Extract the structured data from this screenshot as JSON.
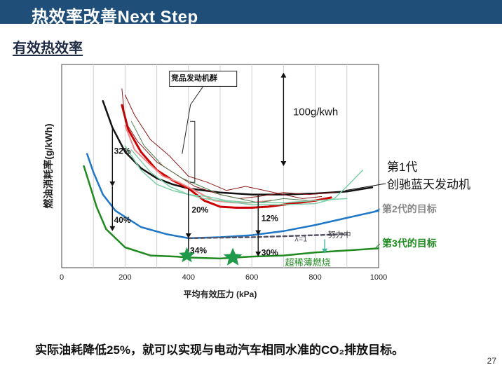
{
  "header": {
    "title": "热效率改善Next Step"
  },
  "subtitle": "有效热效率",
  "footer": {
    "conclusion": "实际油耗降低25%，就可以实现与电动汽车相同水准的CO₂排放目标。",
    "page_number": "27"
  },
  "colors": {
    "header_bg": "#1f4e79",
    "gen1": "#111111",
    "gen2": "#1f77c8",
    "gen3": "#1f8a1f",
    "competitor_red": "#d01010",
    "competitor_pink": "#ef8a8a",
    "competitor_dark": "#8b1a1a",
    "competitor_green": "#7fcfa9",
    "competitor_olive": "#4f7f4f"
  },
  "chart_data": {
    "type": "line",
    "xlabel": "平均有效压力 (kPa)",
    "ylabel": "燃油消耗率(g/kWh)",
    "x_ticks": [
      "0",
      "200",
      "400",
      "600",
      "800",
      "1000"
    ],
    "xlim": [
      0,
      1000
    ],
    "ylim": [
      0,
      100
    ],
    "grid": true,
    "series": [
      {
        "name": "第1代 创驰蓝天发动机",
        "color": "#111111",
        "x": [
          130,
          160,
          200,
          250,
          300,
          350,
          400,
          500,
          600,
          700,
          800,
          900,
          980
        ],
        "y": [
          82,
          69,
          57,
          49,
          44,
          41,
          39,
          37,
          36,
          36,
          36.5,
          37.5,
          39.5
        ]
      },
      {
        "name": "第2代的目标",
        "color": "#1f77c8",
        "x": [
          80,
          100,
          130,
          170,
          250,
          330,
          400,
          500,
          600,
          700,
          800,
          900,
          1000
        ],
        "y": [
          56,
          47,
          36,
          28,
          20,
          16.5,
          14.5,
          15,
          16,
          18,
          21,
          24.5,
          28
        ]
      },
      {
        "name": "第3代的目标",
        "color": "#1f8a1f",
        "x": [
          70,
          90,
          110,
          140,
          200,
          280,
          360,
          400,
          500,
          600,
          700,
          800,
          900,
          1000
        ],
        "y": [
          50,
          40,
          30,
          19,
          10,
          6,
          5.5,
          5,
          4.5,
          5.5,
          6,
          7.5,
          8.5,
          9.5
        ]
      },
      {
        "name": "λ=1",
        "color": "#555566",
        "dashed": true,
        "x": [
          400,
          500,
          600,
          700,
          800,
          900
        ],
        "y": [
          14.5,
          14.8,
          15,
          15.5,
          16,
          16.5
        ]
      },
      {
        "name": "",
        "color": "#cc0000",
        "width": 3,
        "x": [
          190,
          210,
          250,
          300,
          350,
          400,
          450,
          500,
          550,
          600,
          650,
          700,
          800,
          850
        ],
        "y": [
          80,
          68,
          57,
          48,
          43,
          39,
          33,
          30,
          29.5,
          29.5,
          30,
          31,
          33,
          34.5
        ]
      },
      {
        "name": "",
        "color": "#ef8a8a",
        "width": 2,
        "x": [
          200,
          230,
          270,
          320,
          370,
          420,
          480,
          540,
          600,
          660
        ],
        "y": [
          70,
          58,
          52,
          45,
          42,
          38,
          33,
          32,
          32,
          33
        ]
      },
      {
        "name": "",
        "color": "#8b1a1a",
        "width": 1,
        "x": [
          190,
          200,
          240,
          300,
          360,
          420,
          500,
          560,
          620,
          700,
          780,
          860
        ],
        "y": [
          88,
          72,
          62,
          52,
          46,
          40,
          36,
          34,
          35,
          37,
          36,
          37
        ]
      },
      {
        "name": "",
        "color": "#8b1a1a",
        "width": 1,
        "x": [
          200,
          230,
          280,
          340,
          400,
          460,
          520,
          580,
          640,
          700,
          760,
          820
        ],
        "y": [
          85,
          75,
          63,
          55,
          45,
          42,
          38,
          40,
          38,
          36,
          34,
          35
        ]
      },
      {
        "name": "",
        "color": "#4f7f4f",
        "width": 1,
        "x": [
          220,
          260,
          320,
          380,
          440,
          500,
          560,
          620,
          700,
          780
        ],
        "y": [
          72,
          60,
          50,
          44,
          40,
          36,
          34,
          32,
          34,
          33
        ]
      },
      {
        "name": "",
        "color": "#7fcfa9",
        "width": 1.5,
        "x": [
          200,
          250,
          300,
          350,
          400,
          450,
          500,
          550,
          600,
          700,
          800,
          860,
          900,
          950
        ],
        "y": [
          60,
          48,
          41,
          38,
          36,
          34,
          33,
          32,
          31,
          31,
          31.5,
          34,
          40,
          48
        ]
      },
      {
        "name": "",
        "color": "#7fcfa9",
        "width": 1.5,
        "x": [
          220,
          280,
          340,
          400,
          460,
          520,
          600,
          700,
          800,
          900
        ],
        "y": [
          58,
          47,
          40,
          36,
          35,
          33,
          32,
          32,
          33,
          34
        ]
      }
    ],
    "annotations": [
      {
        "text": "32%",
        "x": 165,
        "y": 56,
        "color": "#111111"
      },
      {
        "text": "40%",
        "x": 165,
        "y": 22,
        "color": "#111111"
      },
      {
        "text": "20%",
        "x": 410,
        "y": 27,
        "color": "#111111"
      },
      {
        "text": "34%",
        "x": 405,
        "y": 7,
        "color": "#111111"
      },
      {
        "text": "12%",
        "x": 630,
        "y": 23,
        "color": "#111111"
      },
      {
        "text": "30%",
        "x": 630,
        "y": 6,
        "color": "#111111"
      },
      {
        "text": "λ=1",
        "x": 735,
        "y": 13,
        "color": "#555566"
      },
      {
        "text": "努力中",
        "x": 840,
        "y": 15,
        "color": "#333333"
      },
      {
        "text": "超稀薄燃烧",
        "x": 705,
        "y": 1,
        "color": "#1f8a1f"
      },
      {
        "text": "100g/kwh",
        "x": 730,
        "y": 75,
        "color": "#111111"
      },
      {
        "text": "竞品发动机群",
        "x": 345,
        "y": 92,
        "color": "#111111"
      }
    ],
    "side_labels": [
      {
        "text": "第1代",
        "color": "#111111"
      },
      {
        "text": "创驰蓝天发动机",
        "color": "#111111"
      },
      {
        "text": "第2代的目标",
        "color": "#888888"
      },
      {
        "text": "第3代的目标",
        "color": "#1f8a1f"
      }
    ]
  }
}
